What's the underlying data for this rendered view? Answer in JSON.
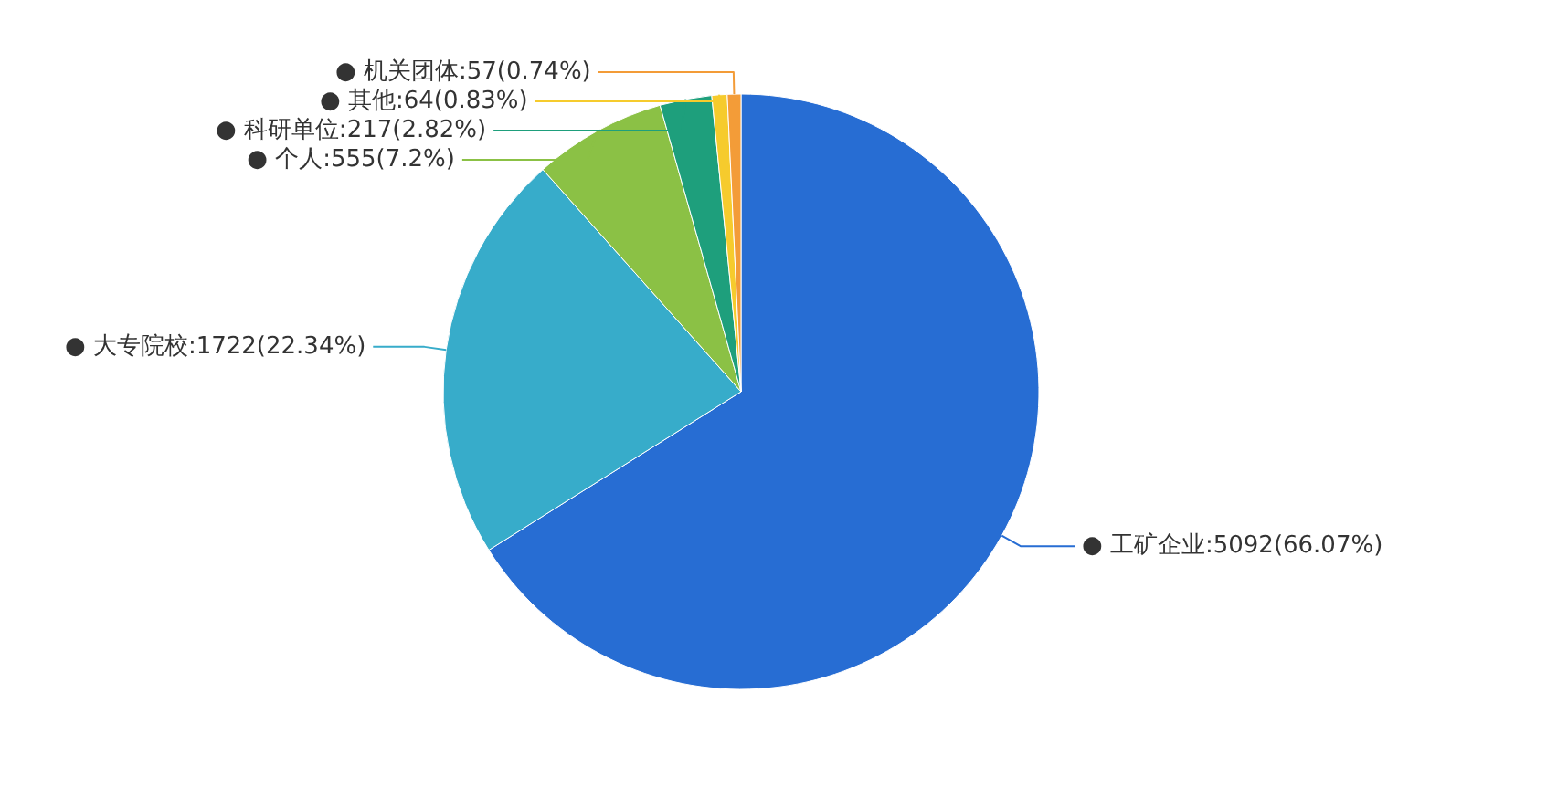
{
  "chart_data": {
    "type": "pie",
    "categories": [
      "● 工矿企业",
      "● 大专院校",
      "● 个人",
      "● 科研单位",
      "● 其他",
      "● 机关团体"
    ],
    "values": [
      5092,
      1722,
      555,
      217,
      64,
      57
    ],
    "value_labels": [
      ":5092(66.07%)",
      ":1722(22.34%)",
      ":555(7.2%)",
      ":217(2.82%)",
      ":64(0.83%)",
      ":57(0.74%)"
    ],
    "colors": [
      "#276dd3",
      "#37acca",
      "#8bc145",
      "#1e9f7c",
      "#f6cb2d",
      "#f39c38"
    ]
  }
}
